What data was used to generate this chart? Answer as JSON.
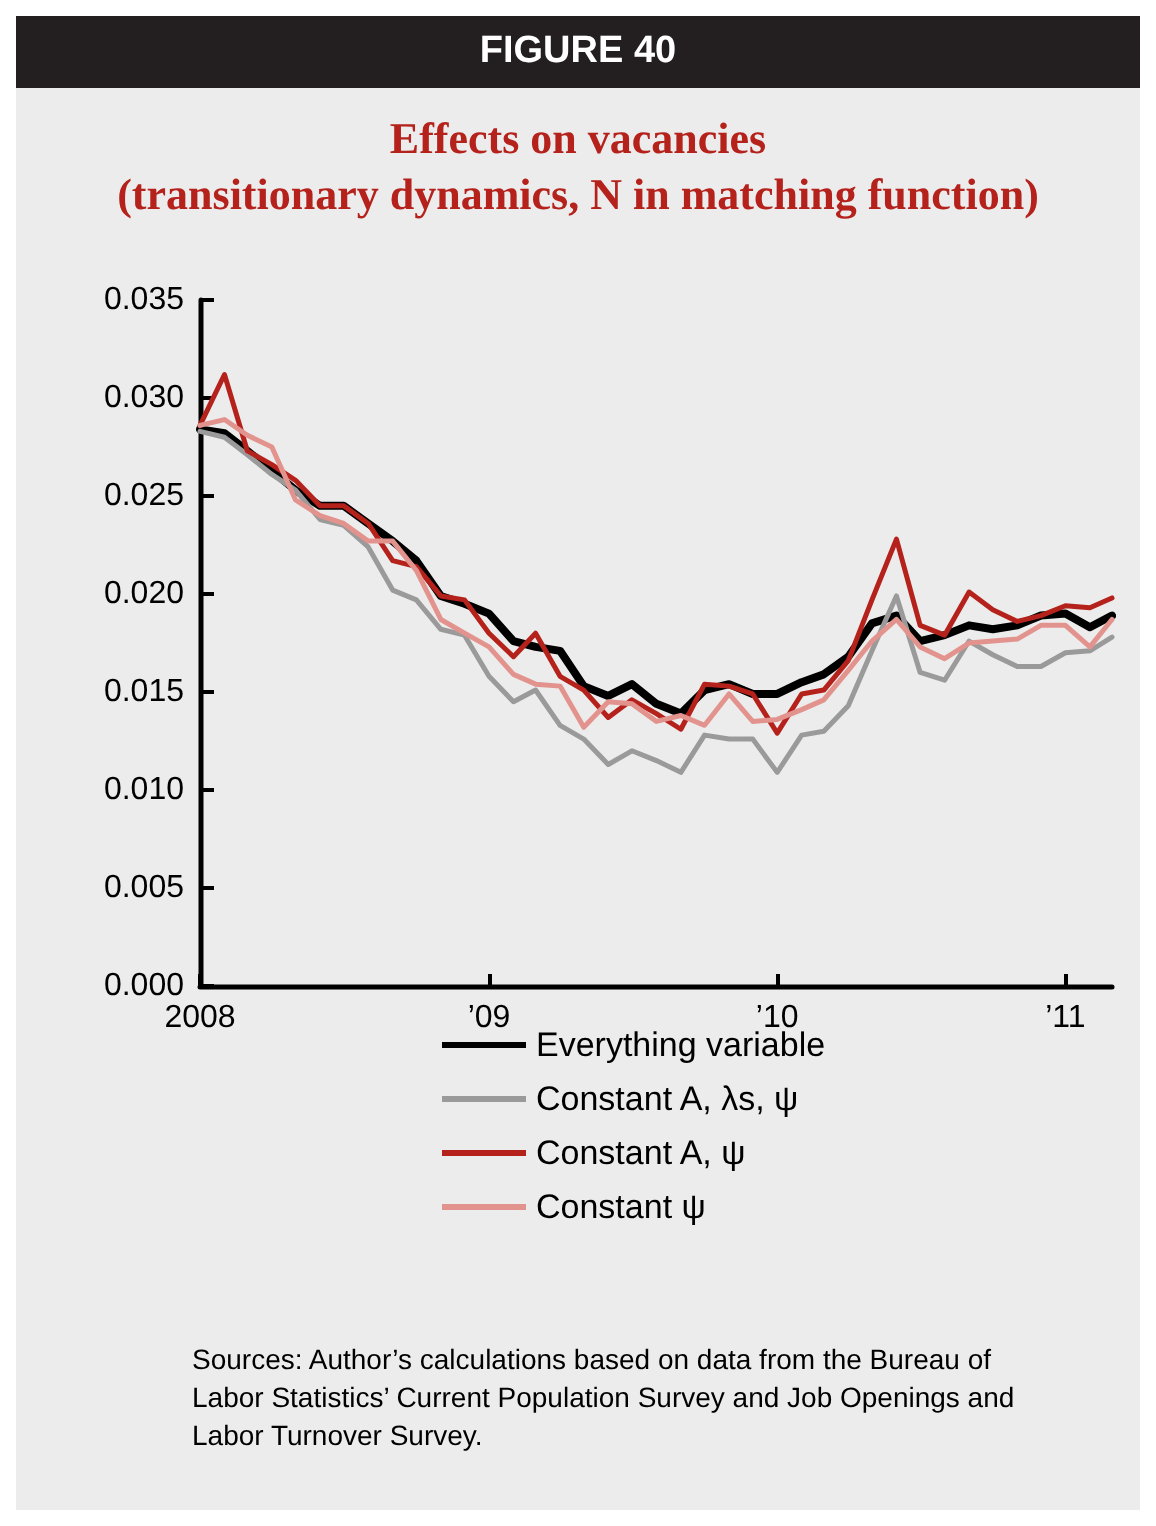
{
  "chart_data": {
    "type": "line",
    "title": "FIGURE 40",
    "subtitle": "Effects on vacancies\n(transitionary dynamics, N in matching function)",
    "x": [
      "2008-01",
      "2008-02",
      "2008-03",
      "2008-04",
      "2008-05",
      "2008-06",
      "2008-07",
      "2008-08",
      "2008-09",
      "2008-10",
      "2008-11",
      "2008-12",
      "2009-01",
      "2009-02",
      "2009-03",
      "2009-04",
      "2009-05",
      "2009-06",
      "2009-07",
      "2009-08",
      "2009-09",
      "2009-10",
      "2009-11",
      "2009-12",
      "2010-01",
      "2010-02",
      "2010-03",
      "2010-04",
      "2010-05",
      "2010-06",
      "2010-07",
      "2010-08",
      "2010-09",
      "2010-10",
      "2010-11",
      "2010-12",
      "2011-01",
      "2011-02",
      "2011-03"
    ],
    "series": [
      {
        "name": "Everything variable",
        "color": "#000000",
        "values": [
          0.0284,
          0.0282,
          0.0273,
          0.0263,
          0.0253,
          0.0245,
          0.0245,
          0.0236,
          0.0227,
          0.0217,
          0.0199,
          0.0195,
          0.019,
          0.0176,
          0.0173,
          0.0171,
          0.0153,
          0.0148,
          0.0154,
          0.0144,
          0.0139,
          0.0151,
          0.0154,
          0.0149,
          0.0149,
          0.0155,
          0.0159,
          0.0168,
          0.0185,
          0.0189,
          0.0176,
          0.0179,
          0.0184,
          0.0182,
          0.0184,
          0.0189,
          0.019,
          0.0183,
          0.0189
        ]
      },
      {
        "name": "Constant A, λs, ψ",
        "color": "#9a9a9a",
        "values": [
          0.0283,
          0.028,
          0.0271,
          0.0261,
          0.0253,
          0.0238,
          0.0235,
          0.0224,
          0.0202,
          0.0197,
          0.0182,
          0.0179,
          0.0158,
          0.0145,
          0.0151,
          0.0133,
          0.0126,
          0.0113,
          0.012,
          0.0115,
          0.0109,
          0.0128,
          0.0126,
          0.0126,
          0.0109,
          0.0128,
          0.013,
          0.0143,
          0.0171,
          0.0199,
          0.016,
          0.0156,
          0.0176,
          0.0169,
          0.0163,
          0.0163,
          0.017,
          0.0171,
          0.0178
        ]
      },
      {
        "name": "Constant A, ψ",
        "color": "#b5221c",
        "values": [
          0.0286,
          0.0312,
          0.0273,
          0.0266,
          0.0258,
          0.0245,
          0.0245,
          0.0236,
          0.0217,
          0.0214,
          0.0199,
          0.0197,
          0.018,
          0.0168,
          0.018,
          0.0158,
          0.0151,
          0.0137,
          0.0146,
          0.0139,
          0.0131,
          0.0154,
          0.0153,
          0.0149,
          0.0129,
          0.0149,
          0.0151,
          0.0166,
          0.0197,
          0.0228,
          0.0184,
          0.0179,
          0.0201,
          0.0192,
          0.0186,
          0.0189,
          0.0194,
          0.0193,
          0.0198
        ]
      },
      {
        "name": "Constant ψ",
        "color": "#e3938d",
        "values": [
          0.0286,
          0.0289,
          0.0281,
          0.0275,
          0.0248,
          0.024,
          0.0236,
          0.0227,
          0.0227,
          0.0212,
          0.0187,
          0.018,
          0.0173,
          0.0159,
          0.0154,
          0.0153,
          0.0132,
          0.0145,
          0.0144,
          0.0135,
          0.0138,
          0.0133,
          0.0149,
          0.0135,
          0.0136,
          0.0141,
          0.0146,
          0.0161,
          0.0176,
          0.0187,
          0.0173,
          0.0167,
          0.0175,
          0.0176,
          0.0177,
          0.0184,
          0.0184,
          0.0173,
          0.0187
        ]
      }
    ],
    "xlim": [
      "2008-01",
      "2011-03"
    ],
    "xticks": [
      {
        "value": "2008",
        "label": "2008"
      },
      {
        "value": "2009",
        "label": "’09"
      },
      {
        "value": "2010",
        "label": "’10"
      },
      {
        "value": "2011",
        "label": "’11"
      }
    ],
    "ylim": [
      0,
      0.035
    ],
    "yticks": [
      {
        "value": 0,
        "label": "0.000"
      },
      {
        "value": 0.005,
        "label": "0.005"
      },
      {
        "value": 0.01,
        "label": "0.010"
      },
      {
        "value": 0.015,
        "label": "0.015"
      },
      {
        "value": 0.02,
        "label": "0.020"
      },
      {
        "value": 0.025,
        "label": "0.025"
      },
      {
        "value": 0.03,
        "label": "0.030"
      },
      {
        "value": 0.035,
        "label": "0.035"
      }
    ],
    "grid": false,
    "legend": "bottom",
    "marker": "none",
    "line_style": "solid",
    "annotations": [
      "Sources: Author’s calculations based on data from the Bureau of Labor Statistics’ Current Population Survey and Job Openings and Labor Turnover Survey."
    ]
  }
}
